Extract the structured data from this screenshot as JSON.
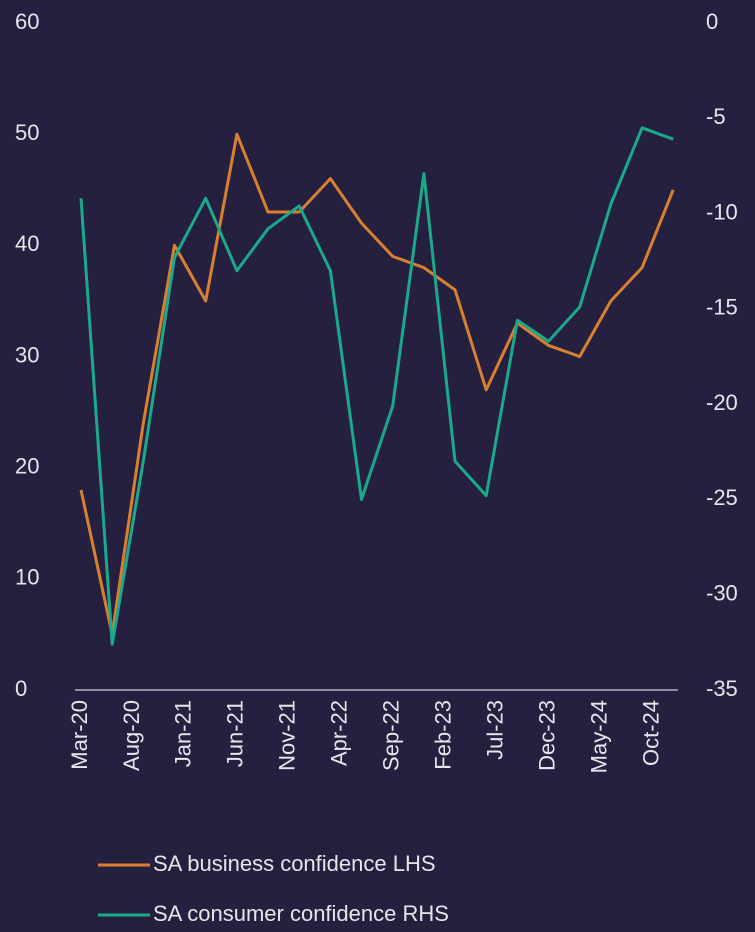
{
  "chart_data": {
    "type": "line",
    "x": [
      "Mar-20",
      "Jun-20",
      "Sep-20",
      "Dec-20",
      "Mar-21",
      "Jun-21",
      "Sep-21",
      "Dec-21",
      "Mar-22",
      "Jun-22",
      "Sep-22",
      "Dec-22",
      "Mar-23",
      "Jun-23",
      "Sep-23",
      "Dec-23",
      "Mar-24",
      "Jun-24",
      "Sep-24",
      "Dec-24"
    ],
    "xticks": [
      "Mar-20",
      "Aug-20",
      "Jan-21",
      "Jun-21",
      "Nov-21",
      "Apr-22",
      "Sep-22",
      "Feb-23",
      "Jul-23",
      "Dec-23",
      "May-24",
      "Oct-24"
    ],
    "series": [
      {
        "name": "SA business confidence LHS",
        "color": "#d98030",
        "values": [
          18,
          5,
          24,
          40,
          35,
          50,
          43,
          43,
          46,
          42,
          39,
          38,
          36,
          27,
          33,
          31,
          30,
          35,
          38,
          45
        ]
      },
      {
        "name": "SA consumer confidence RHS",
        "color": "#1ba98c",
        "axis": "y2",
        "values": [
          -9.2,
          -32.6,
          -23,
          -12.3,
          -9.2,
          -13,
          -10.8,
          -9.6,
          -13,
          -25,
          -20.1,
          -7.9,
          -23,
          -24.8,
          -15.6,
          -16.7,
          -14.9,
          -9.5,
          -5.5,
          -6.1
        ]
      }
    ],
    "ylim": [
      0,
      60
    ],
    "yticks": [
      0,
      10,
      20,
      30,
      40,
      50,
      60
    ],
    "y2lim": [
      -35,
      0
    ],
    "y2ticks": [
      -35,
      -30,
      -25,
      -20,
      -15,
      -10,
      -5,
      0
    ]
  }
}
